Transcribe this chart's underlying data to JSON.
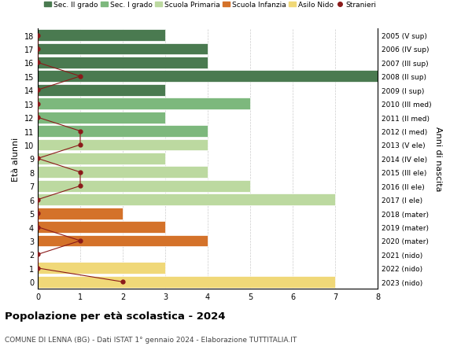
{
  "ages": [
    18,
    17,
    16,
    15,
    14,
    13,
    12,
    11,
    10,
    9,
    8,
    7,
    6,
    5,
    4,
    3,
    2,
    1,
    0
  ],
  "right_labels": [
    "2005 (V sup)",
    "2006 (IV sup)",
    "2007 (III sup)",
    "2008 (II sup)",
    "2009 (I sup)",
    "2010 (III med)",
    "2011 (II med)",
    "2012 (I med)",
    "2013 (V ele)",
    "2014 (IV ele)",
    "2015 (III ele)",
    "2016 (II ele)",
    "2017 (I ele)",
    "2018 (mater)",
    "2019 (mater)",
    "2020 (mater)",
    "2021 (nido)",
    "2022 (nido)",
    "2023 (nido)"
  ],
  "bar_values": [
    3,
    4,
    4,
    8,
    3,
    5,
    3,
    4,
    4,
    3,
    4,
    5,
    7,
    2,
    3,
    4,
    0,
    3,
    7
  ],
  "bar_colors": [
    "#4a7a50",
    "#4a7a50",
    "#4a7a50",
    "#4a7a50",
    "#4a7a50",
    "#7db87d",
    "#7db87d",
    "#7db87d",
    "#bcd9a0",
    "#bcd9a0",
    "#bcd9a0",
    "#bcd9a0",
    "#bcd9a0",
    "#d4722a",
    "#d4722a",
    "#d4722a",
    "#f0d878",
    "#f0d878",
    "#f0d878"
  ],
  "stranieri_values": [
    0,
    0,
    0,
    1,
    0,
    0,
    0,
    1,
    1,
    0,
    1,
    1,
    0,
    0,
    0,
    1,
    0,
    0,
    2
  ],
  "colors": {
    "sec2": "#4a7a50",
    "sec1": "#7db87d",
    "primaria": "#bcd9a0",
    "infanzia": "#d4722a",
    "nido": "#f0d878",
    "stranieri": "#8b1a1a"
  },
  "legend_labels": [
    "Sec. II grado",
    "Sec. I grado",
    "Scuola Primaria",
    "Scuola Infanzia",
    "Asilo Nido",
    "Stranieri"
  ],
  "title": "Popolazione per età scolastica - 2024",
  "subtitle": "COMUNE DI LENNA (BG) - Dati ISTAT 1° gennaio 2024 - Elaborazione TUTTITALIA.IT",
  "ylabel": "Età alunni",
  "right_ylabel": "Anni di nascita",
  "xlim": [
    0,
    8
  ],
  "xticks": [
    0,
    1,
    2,
    3,
    4,
    5,
    6,
    7,
    8
  ],
  "background": "#ffffff"
}
